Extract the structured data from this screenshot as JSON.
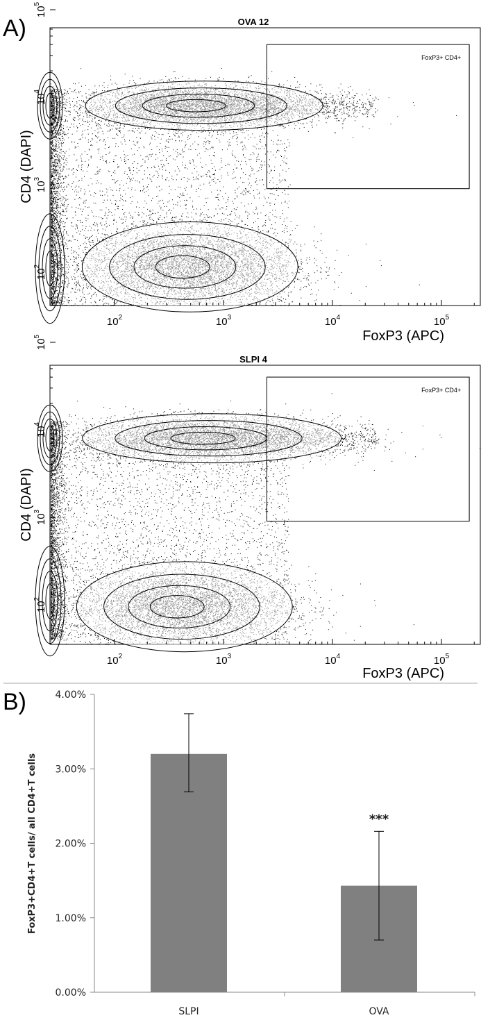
{
  "panel_a_label": "A)",
  "panel_b_label": "B)",
  "chart_data": [
    {
      "type": "scatter",
      "title": "OVA 12",
      "xlabel": "FoxP3 (APC)",
      "ylabel": "CD4 (DAPI)",
      "xscale": "log",
      "yscale": "log",
      "x_ticks": [
        "10^2",
        "10^3",
        "10^4",
        "10^5"
      ],
      "y_ticks": [
        "10^2",
        "10^3",
        "10^4",
        "10^5"
      ],
      "gate": {
        "label": "FoxP3+ CD4+",
        "x_range": [
          2500,
          180000
        ],
        "y_range": [
          900,
          40000
        ]
      },
      "populations": [
        {
          "label": "",
          "center_x": 600,
          "center_y": 8000,
          "spread_x_decades": 0.55,
          "spread_y_decades": 0.12
        },
        {
          "label": "",
          "center_x": 450,
          "center_y": 115,
          "spread_x_decades": 0.5,
          "spread_y_decades": 0.22
        }
      ]
    },
    {
      "type": "scatter",
      "title": "SLPI 4",
      "xlabel": "FoxP3 (APC)",
      "ylabel": "CD4 (DAPI)",
      "xscale": "log",
      "yscale": "log",
      "x_ticks": [
        "10^2",
        "10^3",
        "10^4",
        "10^5"
      ],
      "y_ticks": [
        "10^2",
        "10^3",
        "10^4",
        "10^5"
      ],
      "gate": {
        "label": "FoxP3+ CD4+",
        "x_range": [
          2500,
          180000
        ],
        "y_range": [
          900,
          40000
        ]
      },
      "populations": [
        {
          "label": "",
          "center_x": 700,
          "center_y": 8000,
          "spread_x_decades": 0.6,
          "spread_y_decades": 0.12
        },
        {
          "label": "",
          "center_x": 400,
          "center_y": 95,
          "spread_x_decades": 0.5,
          "spread_y_decades": 0.22
        }
      ]
    },
    {
      "type": "bar",
      "title": "",
      "xlabel": "",
      "ylabel": "FoxP3+CD4+T cells/ all CD4+T cells",
      "categories": [
        "SLPI",
        "OVA"
      ],
      "values": [
        3.2,
        1.43
      ],
      "errors_low": [
        2.69,
        0.7
      ],
      "errors_high": [
        3.74,
        2.16
      ],
      "y_ticks": [
        "0.00%",
        "1.00%",
        "2.00%",
        "3.00%",
        "4.00%"
      ],
      "ylim": [
        0,
        4
      ],
      "annotations": [
        {
          "category": "OVA",
          "text": "***"
        }
      ],
      "bar_color": "#808080",
      "grid": false
    }
  ]
}
